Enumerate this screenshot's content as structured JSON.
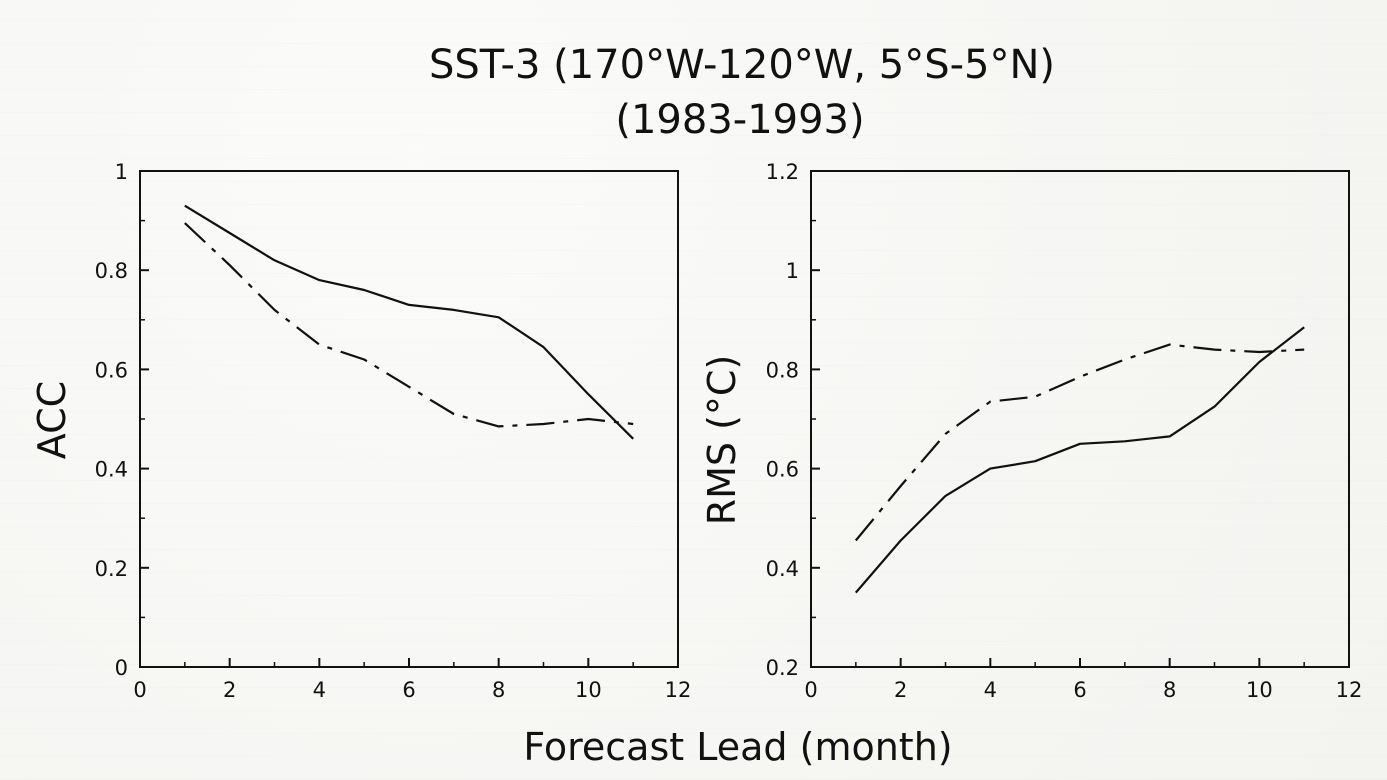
{
  "figure": {
    "title_line1": "SST-3 (170°W-120°W, 5°S-5°N)",
    "title_line2": "(1983-1993)",
    "xlabel": "Forecast Lead (month)"
  },
  "chart_data": [
    {
      "type": "line",
      "title": "",
      "xlabel": "Forecast Lead (month)",
      "ylabel": "ACC",
      "xlim": [
        0,
        12
      ],
      "ylim": [
        0,
        1
      ],
      "xticks": [
        "0",
        "2",
        "4",
        "6",
        "8",
        "10",
        "12"
      ],
      "yticks": [
        "0",
        "0.2",
        "0.4",
        "0.6",
        "0.8",
        "1"
      ],
      "grid": false,
      "series": [
        {
          "style": "solid",
          "x": [
            1,
            2,
            3,
            4,
            5,
            6,
            7,
            8,
            9,
            10,
            11
          ],
          "y": [
            0.93,
            0.875,
            0.82,
            0.78,
            0.76,
            0.73,
            0.72,
            0.705,
            0.645,
            0.55,
            0.46
          ]
        },
        {
          "style": "dash-dot",
          "x": [
            1,
            2,
            3,
            4,
            5,
            6,
            7,
            8,
            9,
            10,
            11
          ],
          "y": [
            0.895,
            0.81,
            0.72,
            0.65,
            0.62,
            0.565,
            0.51,
            0.485,
            0.49,
            0.5,
            0.49
          ]
        }
      ]
    },
    {
      "type": "line",
      "title": "",
      "xlabel": "Forecast Lead (month)",
      "ylabel": "RMS (°C)",
      "xlim": [
        0,
        12
      ],
      "ylim": [
        0.2,
        1.2
      ],
      "xticks": [
        "0",
        "2",
        "4",
        "6",
        "8",
        "10",
        "12"
      ],
      "yticks": [
        "0.2",
        "0.4",
        "0.6",
        "0.8",
        "1",
        "1.2"
      ],
      "grid": false,
      "series": [
        {
          "style": "solid",
          "x": [
            1,
            2,
            3,
            4,
            5,
            6,
            7,
            8,
            9,
            10,
            11
          ],
          "y": [
            0.35,
            0.455,
            0.545,
            0.6,
            0.615,
            0.65,
            0.655,
            0.665,
            0.725,
            0.815,
            0.885
          ]
        },
        {
          "style": "dash-dot",
          "x": [
            1,
            2,
            3,
            4,
            5,
            6,
            7,
            8,
            9,
            10,
            11
          ],
          "y": [
            0.455,
            0.565,
            0.67,
            0.735,
            0.745,
            0.785,
            0.82,
            0.85,
            0.84,
            0.835,
            0.84
          ]
        }
      ]
    }
  ]
}
